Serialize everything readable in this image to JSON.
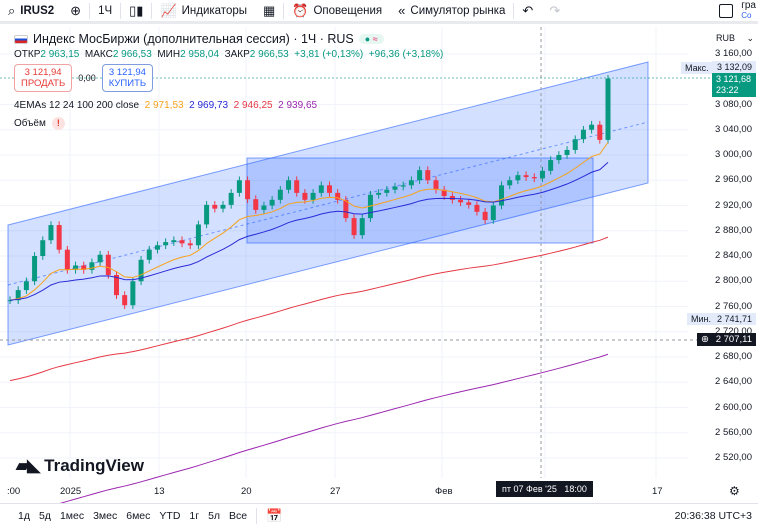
{
  "toolbar": {
    "symbol": "IRUS2",
    "interval": "1Ч",
    "indicators": "Индикаторы",
    "alerts": "Оповещения",
    "replay": "Симулятор рынка",
    "right_top": "гра",
    "right_sub": "Со"
  },
  "legend": {
    "title": "Индекс МосБиржи (дополнительная сессия) · 1Ч · RUS",
    "open_label": "ОТКР",
    "open": "2 963,15",
    "high_label": "МАКС",
    "high": "2 966,53",
    "low_label": "МИН",
    "low": "2 958,04",
    "close_label": "ЗАКР",
    "close": "2 966,53",
    "change": "+3,81 (+0,13%)",
    "change2": "+96,36 (+3,18%)",
    "sell_price": "3 121,94",
    "sell_label": "ПРОДАТЬ",
    "spread": "0,00",
    "buy_price": "3 121,94",
    "buy_label": "КУПИТЬ",
    "ema_label": "4EMAs 12 24 100 200 close",
    "ema_values": [
      "2 971,53",
      "2 969,73",
      "2 946,25",
      "2 939,65"
    ],
    "volume_label": "Объём"
  },
  "colors": {
    "up": "#089981",
    "down": "#f23645",
    "ema12": "#f7a21b",
    "ema24": "#2a2ad6",
    "ema100": "#e53945",
    "ema200": "#9c27b0",
    "channel": "#2962ff"
  },
  "price_axis": {
    "currency": "RUB",
    "ticks": [
      "3 160,00",
      "3 080,00",
      "3 040,00",
      "3 000,00",
      "2 960,00",
      "2 920,00",
      "2 880,00",
      "2 840,00",
      "2 800,00",
      "2 760,00",
      "2 720,00",
      "2 680,00",
      "2 640,00",
      "2 600,00",
      "2 560,00",
      "2 520,00"
    ],
    "max_label": "Макс.",
    "max_value": "3 132,09",
    "last_price": "3 121,68",
    "countdown": "23:22",
    "min_label": "Мин.",
    "min_value": "2 741,71",
    "crosshair_price": "2 707,11"
  },
  "time_axis": {
    "ticks": [
      ":00",
      "2025",
      "13",
      "20",
      "27",
      "Фев",
      "17"
    ],
    "crosshair_time": "пт 07 Фев '25   18:00"
  },
  "closes": [
    2770,
    2786,
    2800,
    2840,
    2865,
    2889,
    2850,
    2818,
    2825,
    2818,
    2830,
    2842,
    2810,
    2778,
    2762,
    2800,
    2834,
    2850,
    2857,
    2862,
    2865,
    2860,
    2857,
    2890,
    2921,
    2915,
    2921,
    2940,
    2960,
    2930,
    2913,
    2920,
    2929,
    2945,
    2960,
    2940,
    2929,
    2940,
    2952,
    2940,
    2929,
    2900,
    2873,
    2900,
    2937,
    2940,
    2945,
    2950,
    2952,
    2960,
    2976,
    2960,
    2945,
    2935,
    2929,
    2925,
    2921,
    2910,
    2897,
    2920,
    2952,
    2960,
    2968,
    2965,
    2963,
    2975,
    2992,
    3000,
    3008,
    3025,
    3040,
    3048,
    3024,
    3121
  ],
  "brand": "TradingView",
  "bottom": {
    "ranges": [
      "1д",
      "5д",
      "1мес",
      "3мес",
      "6мес",
      "YTD",
      "1г",
      "5л",
      "Все"
    ],
    "clock": "20:36:38 UTC+3"
  }
}
